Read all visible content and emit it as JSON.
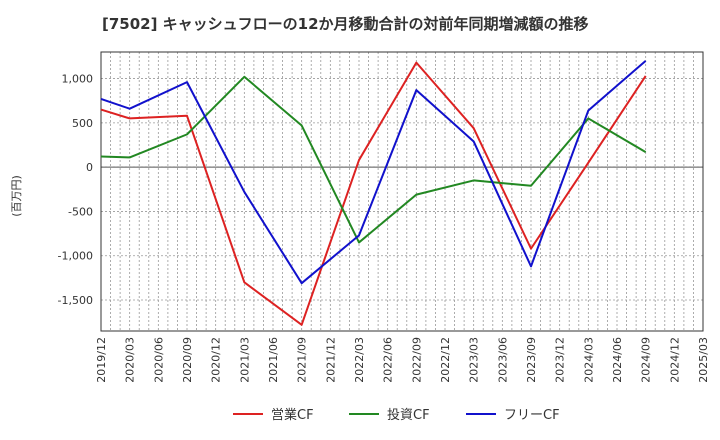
{
  "chart_data": {
    "type": "line",
    "title": "[7502]  キャッシュフローの12か月移動合計の対前年同期増減額の推移",
    "ylabel": "(百万円)",
    "xlabel": "",
    "ylim": [
      -1850,
      1300
    ],
    "yticks": [
      1000,
      500,
      0,
      -500,
      -1000,
      -1500
    ],
    "ytick_labels": [
      "1,000",
      "500",
      "0",
      "-500",
      "-1,000",
      "-1,500"
    ],
    "xticks": [
      "2019/12",
      "2020/03",
      "2020/06",
      "2020/09",
      "2020/12",
      "2021/03",
      "2021/06",
      "2021/09",
      "2021/12",
      "2022/03",
      "2022/06",
      "2022/09",
      "2022/12",
      "2023/03",
      "2023/06",
      "2023/09",
      "2023/12",
      "2024/03",
      "2024/06",
      "2024/09",
      "2024/12",
      "2025/03"
    ],
    "grid": true,
    "legend_position": "bottom",
    "series": [
      {
        "name": "営業CF",
        "color": "#dd2222",
        "x": [
          "2019/12",
          "2020/03",
          "2020/09",
          "2021/03",
          "2021/09",
          "2022/03",
          "2022/09",
          "2023/03",
          "2023/09",
          "2024/03",
          "2024/09"
        ],
        "values": [
          650,
          550,
          580,
          -1300,
          -1780,
          80,
          1180,
          440,
          -920,
          50,
          1030
        ]
      },
      {
        "name": "投資CF",
        "color": "#228822",
        "x": [
          "2019/12",
          "2020/03",
          "2020/09",
          "2021/03",
          "2021/09",
          "2022/03",
          "2022/09",
          "2023/03",
          "2023/09",
          "2024/03",
          "2024/09"
        ],
        "values": [
          120,
          110,
          370,
          1020,
          470,
          -850,
          -310,
          -150,
          -210,
          550,
          170
        ]
      },
      {
        "name": "フリーCF",
        "color": "#1111cc",
        "x": [
          "2019/12",
          "2020/03",
          "2020/09",
          "2021/03",
          "2021/09",
          "2022/03",
          "2022/09",
          "2023/03",
          "2023/09",
          "2024/03",
          "2024/09"
        ],
        "values": [
          770,
          660,
          960,
          -280,
          -1310,
          -770,
          870,
          290,
          -1120,
          640,
          1200
        ]
      }
    ]
  }
}
